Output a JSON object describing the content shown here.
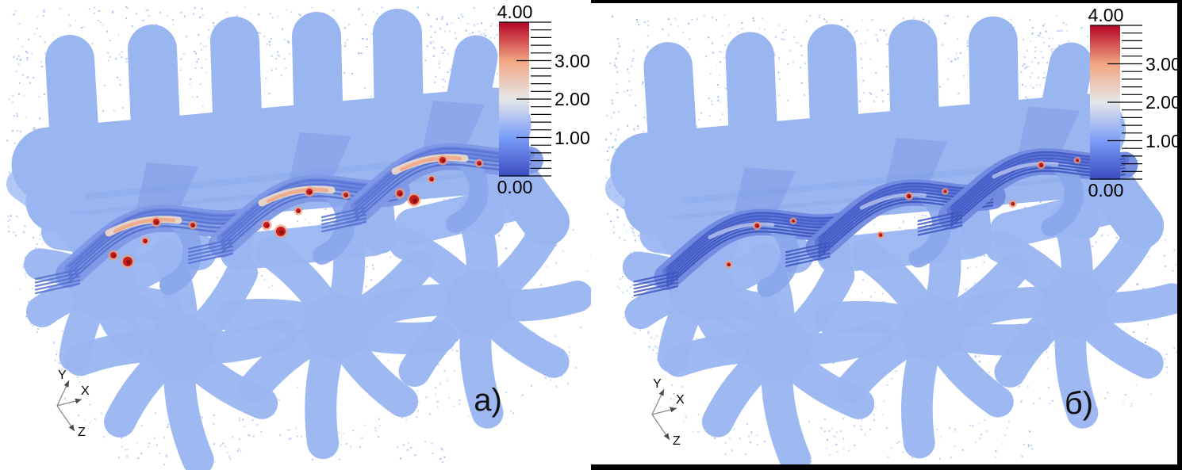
{
  "panels": [
    {
      "label": "а)"
    },
    {
      "label": "б)"
    }
  ],
  "colorbar": {
    "max": "4.00",
    "side_ticks": [
      "3.00",
      "2.00",
      "1.00"
    ],
    "min": "0.00"
  },
  "axes_widget": {
    "x": "X",
    "y": "Y",
    "z": "Z"
  },
  "chart_data": {
    "type": "scatter",
    "title": "",
    "subtype": "3d-particle-rendering, two subfigures of a woven yarn structure",
    "panels": [
      {
        "label": "а)",
        "description": "point cloud of woven textile; middle yarn band shows elevated field values (white/salmon/red regions, up to ~4)"
      },
      {
        "label": "б)",
        "description": "same structure; middle yarn band mostly low values (blue, ~0.5–1) with a few small red hotspots"
      }
    ],
    "colorbar": {
      "range": [
        0,
        4
      ],
      "major_ticks": [
        0.0,
        1.0,
        2.0,
        3.0,
        4.0
      ],
      "minor_tick_step": 0.2,
      "colormap": "cool-warm (blue-white-red)",
      "color_min": "#3b4cc0",
      "color_mid": "#e6e7e9",
      "color_max": "#b40426",
      "orientation": "vertical",
      "position": "top-right of each panel"
    },
    "orientation_axes": [
      "X",
      "Y",
      "Z"
    ],
    "legend_position": "top-right",
    "grid": false
  },
  "colors": {
    "body_points": "#9ab6f1",
    "yarn_stripe": "#4a64cc",
    "hotspot": "#c41d1d",
    "panel_border": "#000000",
    "background": "#ffffff"
  }
}
